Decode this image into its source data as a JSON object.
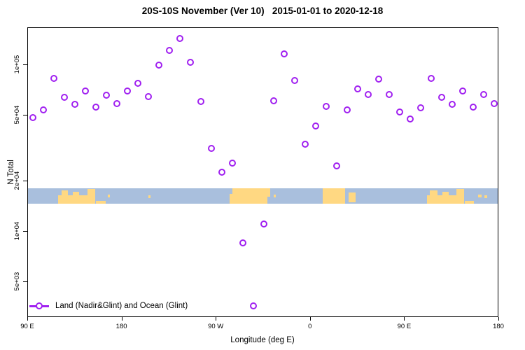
{
  "title": "20S-10S November (Ver 10)   2015-01-01 to 2020-12-18",
  "axes": {
    "x": {
      "label": "Longitude (deg E)",
      "ticks": [
        {
          "lon": 90,
          "label": "90 E"
        },
        {
          "lon": 180,
          "label": "180"
        },
        {
          "lon": 270,
          "label": "90 W"
        },
        {
          "lon": 360,
          "label": "0"
        },
        {
          "lon": 450,
          "label": "90 E"
        },
        {
          "lon": 540,
          "label": "180"
        }
      ]
    },
    "y": {
      "label": "N Total",
      "scale": "log",
      "ticks": [
        {
          "value": 100000,
          "label": "1e+05"
        },
        {
          "value": 50000,
          "label": "5e+04"
        },
        {
          "value": 20000,
          "label": "2e+04"
        },
        {
          "value": 10000,
          "label": "1e+04"
        },
        {
          "value": 5000,
          "label": "5e+03"
        }
      ]
    }
  },
  "legend": {
    "label": "Land (Nadir&Glint) and Ocean (Glint)"
  },
  "colors": {
    "marker": "#A020F0",
    "ocean": "#A9BFDD",
    "land": "#FFD882",
    "axis": "#000000"
  },
  "chart_data": {
    "type": "scatter",
    "series_name": "Land (Nadir&Glint) and Ocean (Glint)",
    "xlabel": "Longitude (deg E)",
    "ylabel": "N Total",
    "xlim": [
      90,
      540
    ],
    "ylim": [
      3040,
      167000
    ],
    "yscale": "log",
    "x": [
      95,
      105,
      115,
      125,
      135,
      145,
      155,
      165,
      175,
      185,
      195,
      205,
      215,
      225,
      235,
      245,
      255,
      265,
      275,
      285,
      295,
      305,
      315,
      325,
      335,
      345,
      355,
      365,
      375,
      385,
      395,
      405,
      415,
      425,
      435,
      445,
      455,
      465,
      475,
      485,
      495,
      505,
      515,
      525,
      535
    ],
    "y": [
      48400,
      53800,
      83200,
      64000,
      58200,
      69900,
      56000,
      66000,
      58700,
      69900,
      77800,
      64700,
      99700,
      122500,
      144500,
      104000,
      60500,
      31600,
      22700,
      25800,
      8570,
      3590,
      11100,
      61100,
      116700,
      80800,
      33500,
      43100,
      56500,
      24800,
      53600,
      71900,
      66600,
      82400,
      66900,
      52300,
      47500,
      55200,
      83200,
      64000,
      58200,
      69900,
      56000,
      66600,
      58700
    ],
    "map_band": {
      "top_value": 18200,
      "bottom_value": 14700,
      "land_patches": [
        [
          119,
          147,
          45,
          100
        ],
        [
          122,
          128,
          12,
          45
        ],
        [
          133,
          139,
          22,
          45
        ],
        [
          147,
          154.5,
          2,
          100
        ],
        [
          155,
          164,
          82,
          100
        ],
        [
          166.5,
          168.5,
          40,
          60
        ],
        [
          205,
          207,
          45,
          65
        ],
        [
          282.5,
          285.5,
          35,
          100
        ],
        [
          285.5,
          319,
          0,
          100
        ],
        [
          319,
          321.5,
          0,
          55
        ],
        [
          325,
          327,
          40,
          60
        ],
        [
          371.5,
          393,
          0,
          100
        ],
        [
          396.5,
          403,
          25,
          92
        ],
        [
          471,
          499,
          45,
          100
        ],
        [
          474,
          481,
          12,
          45
        ],
        [
          486,
          492,
          22,
          45
        ],
        [
          499,
          506.5,
          2,
          100
        ],
        [
          507,
          516,
          82,
          100
        ],
        [
          520,
          523,
          40,
          60
        ],
        [
          526,
          528.5,
          45,
          65
        ]
      ]
    }
  }
}
